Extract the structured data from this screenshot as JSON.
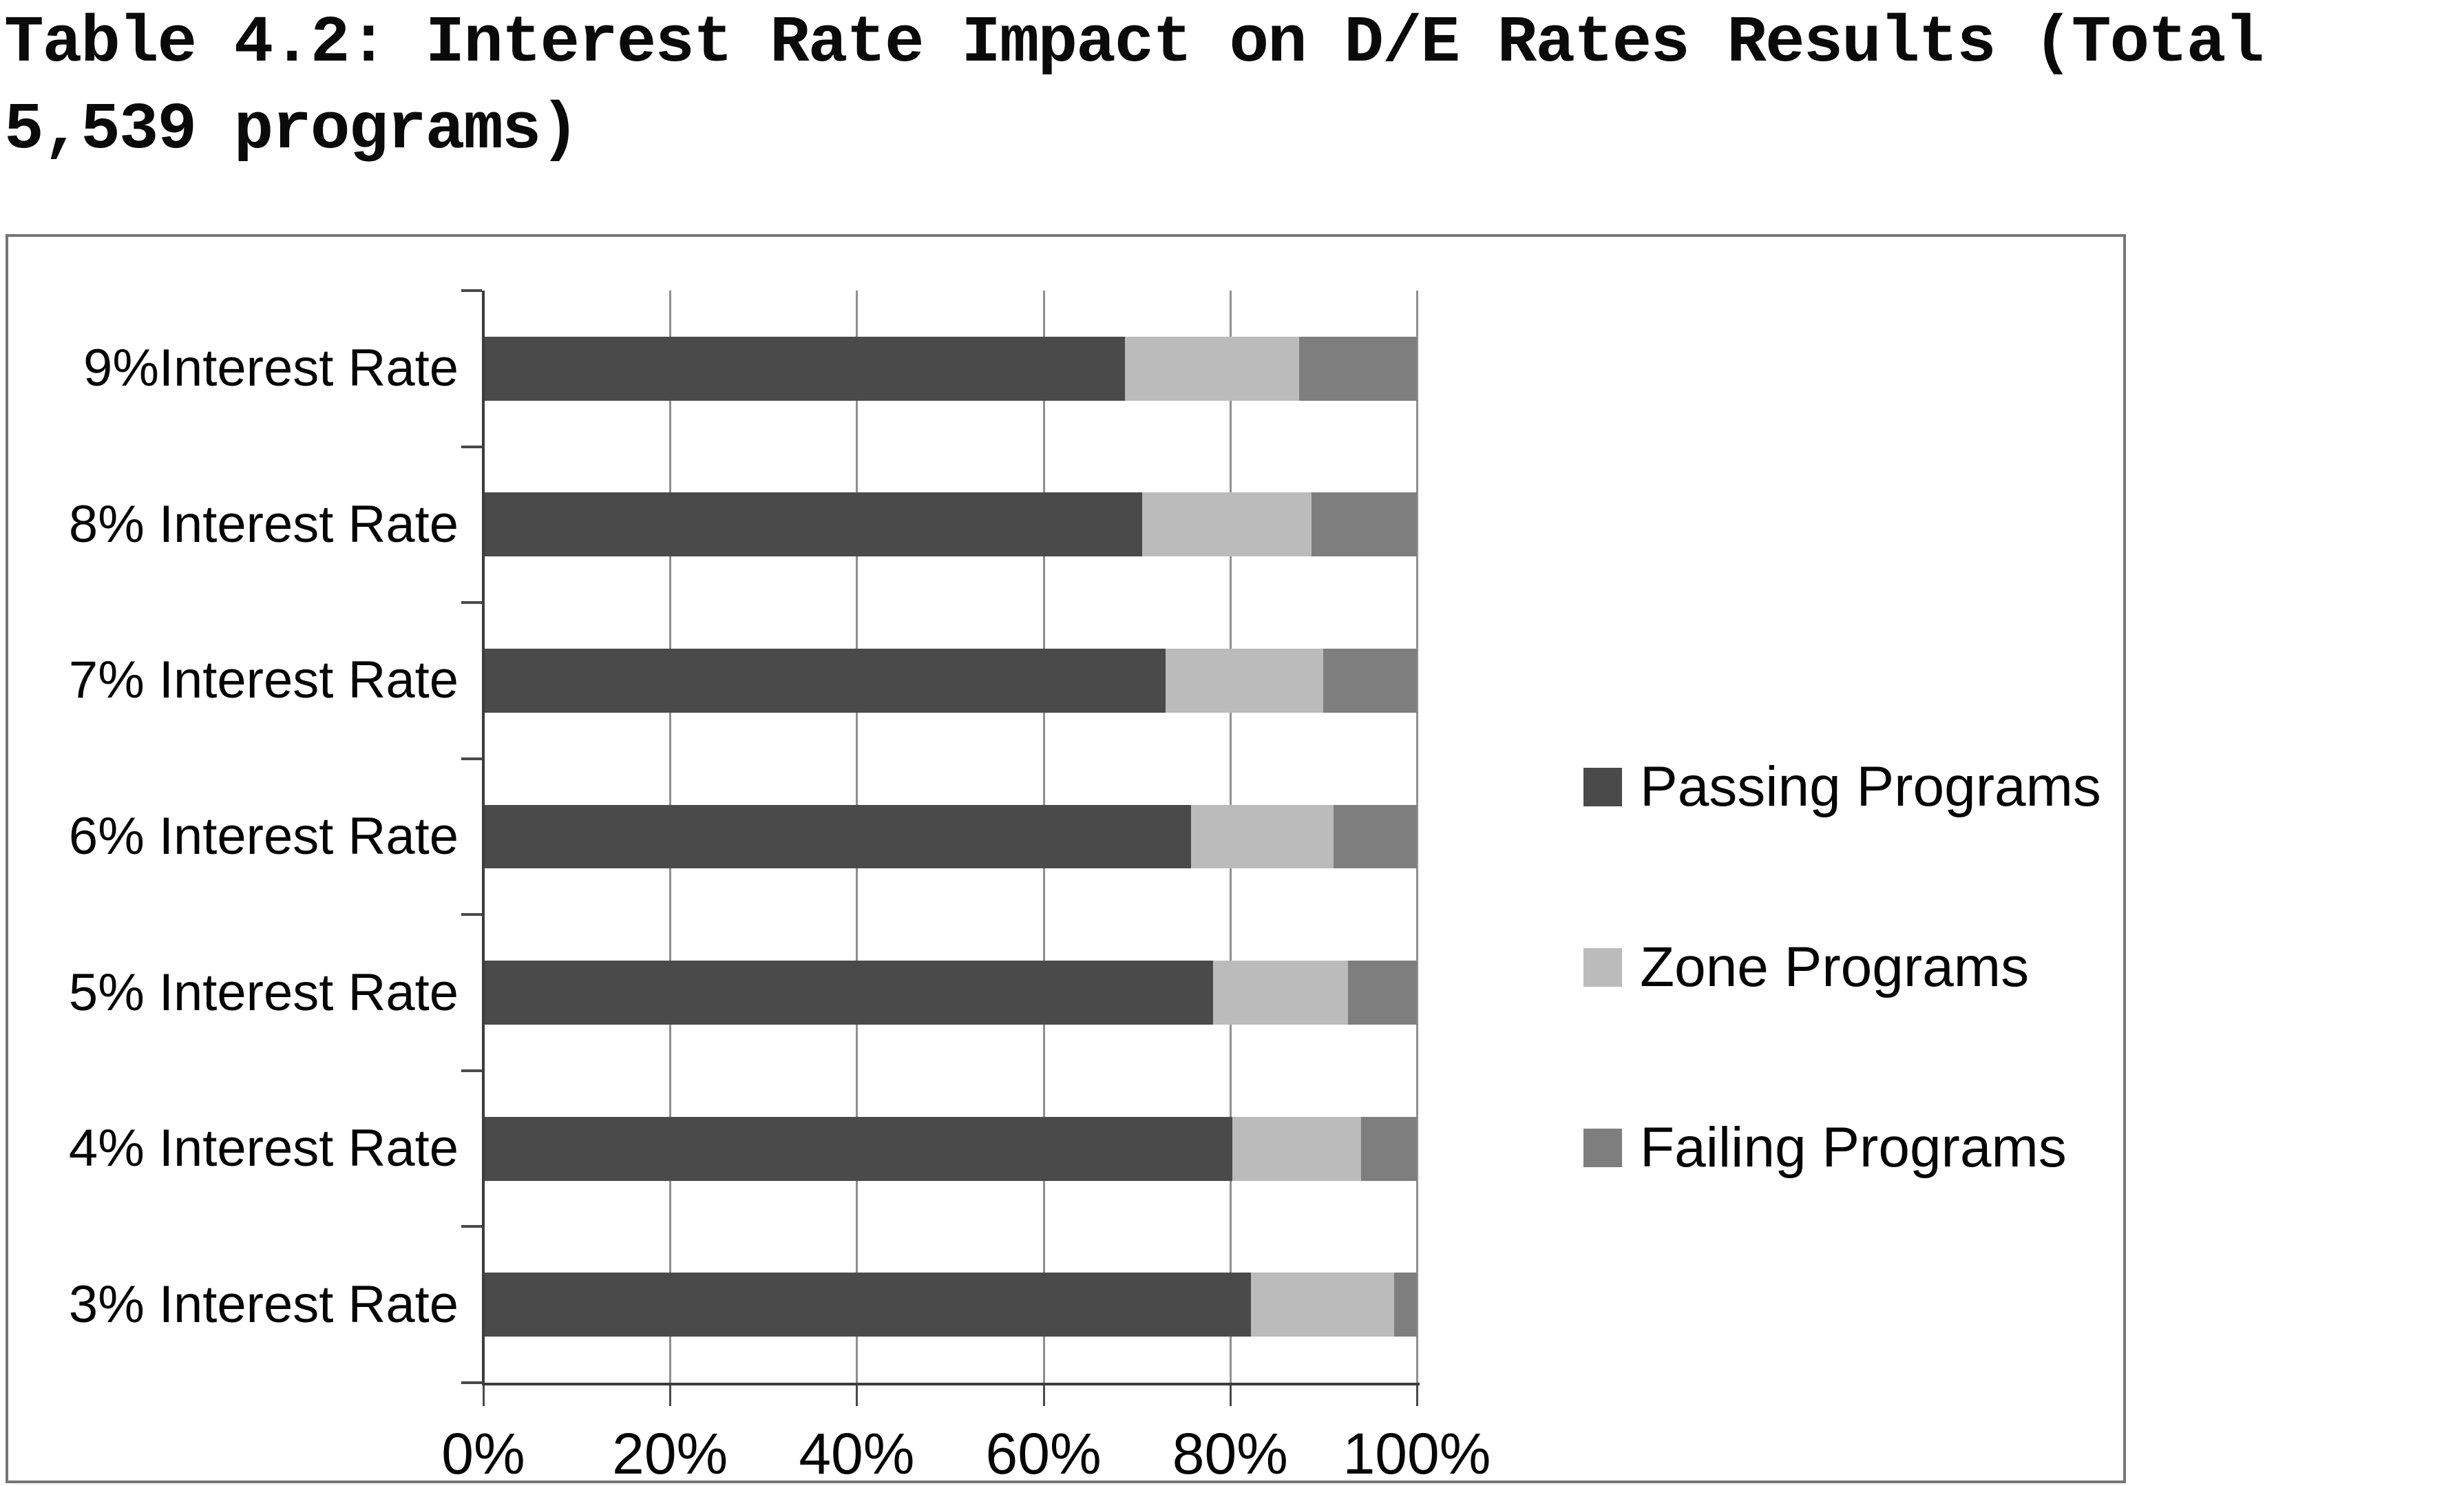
{
  "title": "Table 4.2: Interest Rate Impact on D/E Rates Results (Total 5,539 programs)",
  "title_lines": [
    "Table 4.2: Interest Rate Impact on D/E Rates Results (Total",
    "5,539 programs)"
  ],
  "chart_data": {
    "type": "bar",
    "orientation": "horizontal",
    "stacked": true,
    "title": "Table 4.2: Interest Rate Impact on D/E Rates Results (Total 5,539 programs)",
    "total_programs": "5,539",
    "categories": [
      "9%Interest Rate",
      "8% Interest Rate",
      "7% Interest Rate",
      "6% Interest Rate",
      "5% Interest Rate",
      "4% Interest Rate",
      "3% Interest Rate"
    ],
    "series": [
      {
        "name": "Passing Programs",
        "color": "#4a4a4a",
        "values": [
          68.7,
          70.6,
          73.1,
          75.8,
          78.2,
          80.2,
          82.2
        ]
      },
      {
        "name": "Zone Programs",
        "color": "#bbbbbb",
        "values": [
          18.7,
          18.1,
          16.9,
          15.3,
          14.4,
          13.8,
          15.4
        ]
      },
      {
        "name": "Failing Programs",
        "color": "#7e7e7e",
        "values": [
          12.6,
          11.3,
          10.0,
          8.9,
          7.4,
          6.0,
          2.4
        ]
      }
    ],
    "x_ticks": [
      "0%",
      "20%",
      "40%",
      "60%",
      "80%",
      "100%"
    ],
    "xlim": [
      0,
      100
    ],
    "xlabel": "",
    "ylabel": "",
    "grid": true,
    "legend_position": "right",
    "axis_color": "#3c3c3c",
    "gridline_color": "#8f8f8f"
  }
}
